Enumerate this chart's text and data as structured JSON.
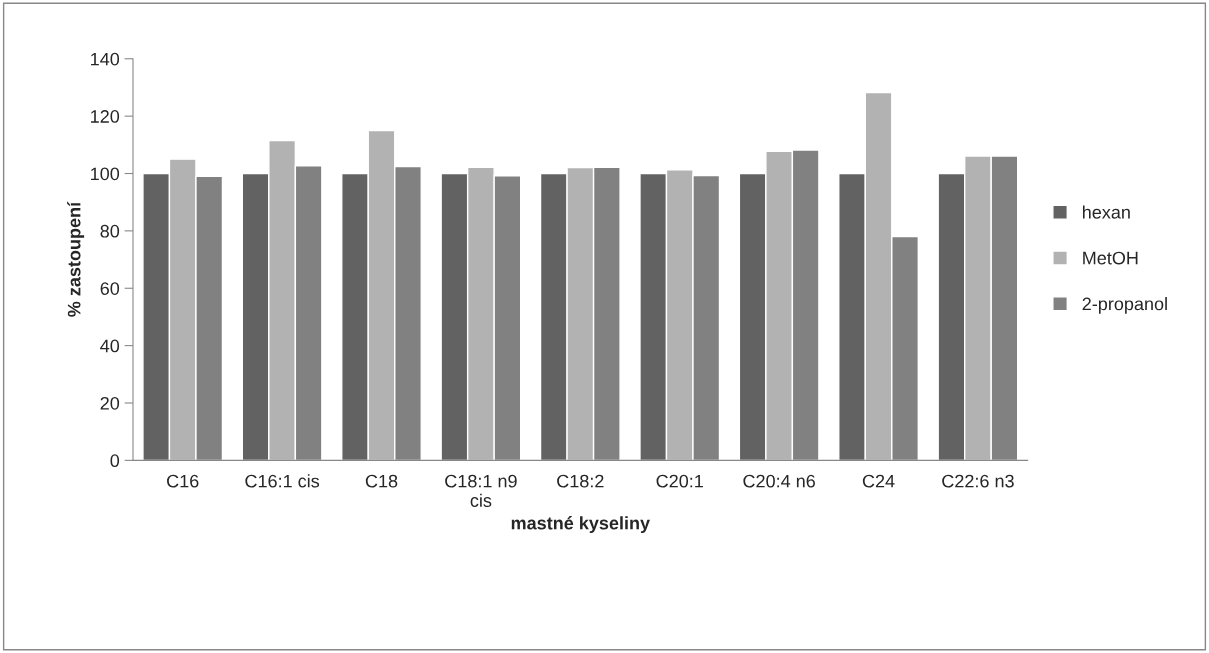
{
  "chart_data": {
    "type": "bar",
    "xlabel": "mastné kyseliny",
    "ylabel": "% zastoupení",
    "categories": [
      "C16",
      "C16:1 cis",
      "C18",
      "C18:1 n9\ncis",
      "C18:2",
      "C20:1",
      "C20:4 n6",
      "C24",
      "C22:6 n3"
    ],
    "series": [
      {
        "name": "hexan",
        "color": "#626262",
        "values": [
          100,
          100,
          100,
          100,
          100,
          100,
          100,
          100,
          100
        ]
      },
      {
        "name": "MetOH",
        "color": "#b2b2b2",
        "values": [
          105,
          111.5,
          115,
          102.2,
          102.1,
          101.3,
          107.7,
          128.2,
          106.1
        ]
      },
      {
        "name": "2-propanol",
        "color": "#818181",
        "values": [
          99,
          102.7,
          102.4,
          99.2,
          102.2,
          99.3,
          108.2,
          78,
          106.1
        ]
      }
    ],
    "ylim": [
      0,
      140
    ],
    "yticks": [
      0,
      20,
      40,
      60,
      80,
      100,
      120,
      140
    ],
    "grid": false,
    "legend": "right"
  }
}
